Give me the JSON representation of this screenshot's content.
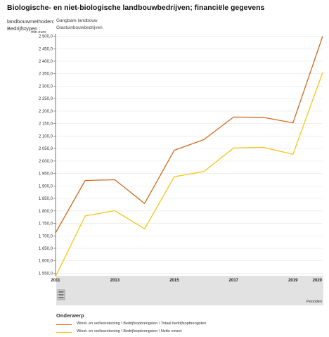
{
  "page": {
    "title": "Biologische- en niet-biologische landbouwbedrijven; financiële gegevens",
    "filters": [
      {
        "label": "landbouwmethoden:",
        "value": "Gangbare landbouw"
      },
      {
        "label": "Bedrijfstypen :",
        "value": "Glastuinbouwbedrijven"
      }
    ]
  },
  "chart_data": {
    "type": "line",
    "unit_label": "mln euro",
    "x": [
      2011,
      2012,
      2013,
      2014,
      2015,
      2016,
      2017,
      2018,
      2019,
      2020
    ],
    "x_tick_labels": [
      "2011",
      "2013",
      "2015",
      "2017",
      "2019",
      "2020"
    ],
    "x_axis_title": "Perioden",
    "ylim": [
      1540,
      2510
    ],
    "y_ticks": [
      1550,
      1600,
      1650,
      1700,
      1750,
      1800,
      1850,
      1900,
      1950,
      2000,
      2050,
      2100,
      2150,
      2200,
      2250,
      2300,
      2350,
      2400,
      2450,
      2500
    ],
    "y_tick_labels": [
      "1 550,0",
      "1 600,0",
      "1 650,0",
      "1 700,0",
      "1 750,0",
      "1 800,0",
      "1 850,0",
      "1 900,0",
      "1 950,0",
      "2 000,0",
      "2 050,0",
      "2 100,0",
      "2 150,0",
      "2 200,0",
      "2 250,0",
      "2 300,0",
      "2 350,0",
      "2 400,0",
      "2 450,0",
      "2 500,0"
    ],
    "grid": true,
    "legend_position": "bottom",
    "legend_title": "Onderwerp",
    "series": [
      {
        "name": "Winst- en verliesrekening \\ Bedrijfsopbrengsten \\ Totaal bedrijfsopbrengsten",
        "color": "#d2691e",
        "values": [
          1712,
          1922,
          1925,
          1830,
          2043,
          2086,
          2176,
          2175,
          2153,
          2500
        ]
      },
      {
        "name": "Winst- en verliesrekening \\ Bedrijfsopbrengsten \\ Netto omzet",
        "color": "#f5c518",
        "values": [
          1537,
          1780,
          1801,
          1728,
          1937,
          1958,
          2052,
          2055,
          2027,
          2355
        ]
      }
    ]
  }
}
